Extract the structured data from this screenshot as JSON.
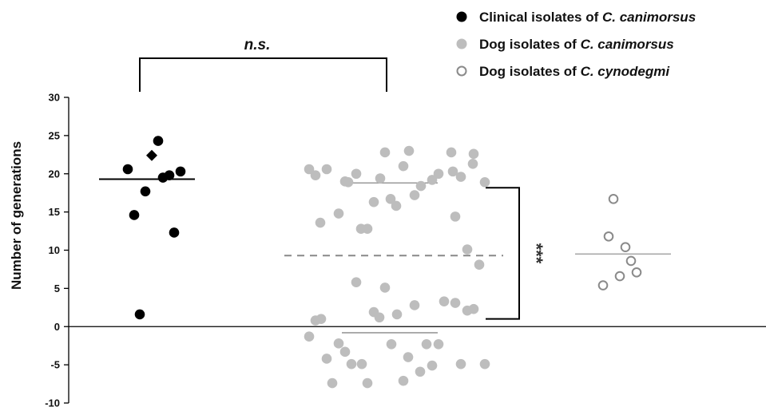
{
  "chart_data": {
    "type": "scatter",
    "title": "",
    "xlabel": "",
    "ylabel": "Number of generations",
    "ylim": [
      -10,
      30
    ],
    "yticks": [
      30,
      25,
      20,
      15,
      10,
      5,
      0,
      -5,
      -10
    ],
    "grid": false,
    "legend_position": "top-right",
    "colors": {
      "clinical": "#000000",
      "dog_canimorsus": "#bdbdbd",
      "dog_cynodegmi_stroke": "#8a8a8a",
      "dashed_line": "#888888"
    },
    "legend": [
      {
        "key": "clinical",
        "prefix": "Clinical isolates of ",
        "species": "C. canimorsus"
      },
      {
        "key": "dog_canimorsus",
        "prefix": "Dog isolates of ",
        "species": "C. canimorsus"
      },
      {
        "key": "dog_cynodegmi",
        "prefix": "Dog isolates of ",
        "species": "C. cynodegmi"
      }
    ],
    "series": [
      {
        "key": "clinical",
        "median": 19.3,
        "points": [
          24.3,
          22.4,
          20.6,
          20.3,
          19.8,
          19.5,
          17.7,
          14.6,
          12.3,
          1.6
        ],
        "diamond_value": 22.4
      },
      {
        "key": "dog_canimorsus",
        "upper_median": 18.8,
        "lower_median": -0.8,
        "overall_median": 9.3,
        "points": [
          23.0,
          22.8,
          22.8,
          22.6,
          21.3,
          21.0,
          20.6,
          20.6,
          20.3,
          20.0,
          20.0,
          19.8,
          19.6,
          19.4,
          19.2,
          19.0,
          18.9,
          18.9,
          18.4,
          17.2,
          16.7,
          16.3,
          15.8,
          14.8,
          14.4,
          13.6,
          12.8,
          12.8,
          10.1,
          8.1,
          5.8,
          5.1,
          3.3,
          3.1,
          2.8,
          2.3,
          2.1,
          1.9,
          1.6,
          1.2,
          1.0,
          0.8,
          -1.3,
          -2.2,
          -2.3,
          -2.3,
          -2.3,
          -3.3,
          -4.0,
          -4.2,
          -4.9,
          -4.9,
          -4.9,
          -4.9,
          -5.1,
          -5.9,
          -7.1,
          -7.4,
          -7.4
        ]
      },
      {
        "key": "dog_cynodegmi",
        "median": 9.5,
        "points": [
          16.7,
          11.8,
          10.4,
          8.6,
          7.1,
          6.6,
          5.4
        ]
      }
    ],
    "annotations": {
      "ns_label": "n.s.",
      "stars_label": "***"
    }
  }
}
